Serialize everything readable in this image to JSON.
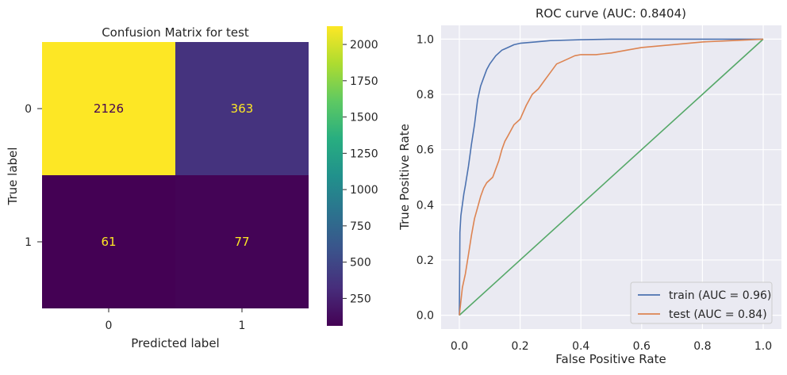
{
  "chart_data": [
    {
      "type": "heatmap",
      "title": "Confusion Matrix for test",
      "xlabel": "Predicted label",
      "ylabel": "True label",
      "x_categories": [
        "0",
        "1"
      ],
      "y_categories": [
        "0",
        "1"
      ],
      "values": [
        [
          2126,
          363
        ],
        [
          61,
          77
        ]
      ],
      "colormap": "viridis",
      "colorbar": {
        "min": 61,
        "max": 2126,
        "ticks": [
          250,
          500,
          750,
          1000,
          1250,
          1500,
          1750,
          2000
        ],
        "tick_labels": [
          "250",
          "500",
          "750",
          "1000",
          "1250",
          "1500",
          "1750",
          "2000"
        ]
      },
      "annotation_colors": {
        "light": "#440154",
        "dark": "#fde725"
      }
    },
    {
      "type": "line",
      "title": "ROC curve (AUC: 0.8404)",
      "xlabel": "False Positive Rate",
      "ylabel": "True Positive Rate",
      "xlim": [
        -0.06,
        1.06
      ],
      "ylim": [
        -0.05,
        1.05
      ],
      "x_ticks": [
        "0.0",
        "0.2",
        "0.4",
        "0.6",
        "0.8",
        "1.0"
      ],
      "y_ticks": [
        "0.0",
        "0.2",
        "0.4",
        "0.6",
        "0.8",
        "1.0"
      ],
      "grid": true,
      "legend_position": "lower-right",
      "series": [
        {
          "name": "train (AUC = 0.96)",
          "color": "#4c72b0",
          "x": [
            0,
            0.002,
            0.005,
            0.01,
            0.015,
            0.02,
            0.03,
            0.04,
            0.05,
            0.06,
            0.07,
            0.08,
            0.09,
            0.1,
            0.12,
            0.14,
            0.16,
            0.18,
            0.2,
            0.25,
            0.3,
            0.4,
            0.5,
            0.6,
            0.8,
            1.0
          ],
          "y": [
            0,
            0.3,
            0.36,
            0.4,
            0.44,
            0.47,
            0.54,
            0.62,
            0.69,
            0.78,
            0.83,
            0.86,
            0.89,
            0.91,
            0.94,
            0.96,
            0.97,
            0.98,
            0.985,
            0.99,
            0.995,
            0.998,
            1.0,
            1.0,
            1.0,
            1.0
          ]
        },
        {
          "name": "test (AUC = 0.84)",
          "color": "#dd8452",
          "x": [
            0,
            0.005,
            0.01,
            0.02,
            0.03,
            0.04,
            0.05,
            0.06,
            0.07,
            0.08,
            0.09,
            0.1,
            0.11,
            0.12,
            0.13,
            0.14,
            0.15,
            0.16,
            0.17,
            0.18,
            0.2,
            0.22,
            0.24,
            0.26,
            0.28,
            0.3,
            0.32,
            0.34,
            0.36,
            0.38,
            0.4,
            0.45,
            0.5,
            0.55,
            0.6,
            0.7,
            0.8,
            0.9,
            1.0
          ],
          "y": [
            0,
            0.05,
            0.1,
            0.15,
            0.22,
            0.29,
            0.35,
            0.39,
            0.43,
            0.46,
            0.48,
            0.49,
            0.5,
            0.53,
            0.56,
            0.6,
            0.63,
            0.65,
            0.67,
            0.69,
            0.71,
            0.76,
            0.8,
            0.82,
            0.85,
            0.88,
            0.91,
            0.92,
            0.93,
            0.94,
            0.944,
            0.944,
            0.95,
            0.96,
            0.97,
            0.98,
            0.99,
            0.995,
            1.0
          ]
        },
        {
          "name": "",
          "color": "#55a868",
          "x": [
            0,
            1
          ],
          "y": [
            0,
            1
          ]
        }
      ]
    }
  ]
}
